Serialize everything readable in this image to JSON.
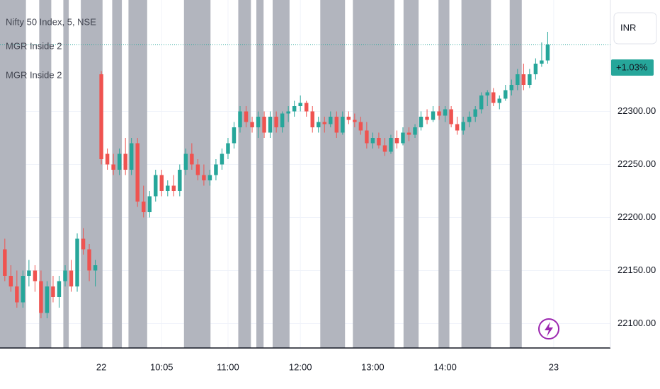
{
  "chart_data": {
    "type": "candlestick",
    "title": "Nifty 50 Index, 5, NSE",
    "indicators": [
      "MGR Inside 2",
      "MGR Inside 2"
    ],
    "currency": "INR",
    "change_label": "+1.03%",
    "last_price": 22363,
    "up_color": "#26a69a",
    "down_color": "#ef5350",
    "band_color": "#b2b5be",
    "grid": true,
    "xlim": [
      -16.8,
      84.4
    ],
    "ylim": [
      22077,
      22405
    ],
    "yticks": [
      {
        "value": 22100,
        "label": "22100.00"
      },
      {
        "value": 22150,
        "label": "22150.00"
      },
      {
        "value": 22200,
        "label": "22200.00"
      },
      {
        "value": 22250,
        "label": "22250.00"
      },
      {
        "value": 22300,
        "label": "22300.00"
      }
    ],
    "xticks": [
      {
        "value": 0,
        "label": "22"
      },
      {
        "value": 10,
        "label": "10:05"
      },
      {
        "value": 21,
        "label": "11:00"
      },
      {
        "value": 33,
        "label": "12:00"
      },
      {
        "value": 45,
        "label": "13:00"
      },
      {
        "value": 57,
        "label": "14:00"
      },
      {
        "value": 75,
        "label": "23"
      }
    ],
    "bands": [
      [
        -16.8,
        -12.5
      ],
      [
        -10.3,
        -8.3
      ],
      [
        -6.3,
        -5.4
      ],
      [
        -3.4,
        0.2
      ],
      [
        1.8,
        3.4
      ],
      [
        4.5,
        7.6
      ],
      [
        13.7,
        18.1
      ],
      [
        22.7,
        24.8
      ],
      [
        25.7,
        26.9
      ],
      [
        28.4,
        31.2
      ],
      [
        36.3,
        40.4
      ],
      [
        41.7,
        48.6
      ],
      [
        50.1,
        52.6
      ],
      [
        55.9,
        57.7
      ],
      [
        59.7,
        64.6
      ],
      [
        67.7,
        69.7
      ]
    ],
    "x": [
      -16,
      -15,
      -14,
      -13,
      -12,
      -11,
      -10,
      -9,
      -8,
      -7,
      -6,
      -5,
      -4,
      -3,
      -2,
      -1,
      0,
      1,
      2,
      3,
      4,
      5,
      6,
      7,
      8,
      9,
      10,
      11,
      12,
      13,
      14,
      15,
      16,
      17,
      18,
      19,
      20,
      21,
      22,
      23,
      24,
      25,
      26,
      27,
      28,
      29,
      30,
      31,
      32,
      33,
      34,
      35,
      36,
      37,
      38,
      39,
      40,
      41,
      42,
      43,
      44,
      45,
      46,
      47,
      48,
      49,
      50,
      51,
      52,
      53,
      54,
      55,
      56,
      57,
      58,
      59,
      60,
      61,
      62,
      63,
      64,
      65,
      66,
      67,
      68,
      69,
      70,
      71,
      72,
      73,
      74
    ],
    "open": [
      22170,
      22145,
      22135,
      22120,
      22145,
      22150,
      22140,
      22110,
      22135,
      22125,
      22140,
      22150,
      22135,
      22180,
      22170,
      22150,
      22335,
      22260,
      22250,
      22245,
      22260,
      22245,
      22270,
      22215,
      22205,
      22220,
      22240,
      22225,
      22230,
      22225,
      22245,
      22260,
      22250,
      22240,
      22235,
      22240,
      22250,
      22260,
      22270,
      22285,
      22300,
      22290,
      22285,
      22295,
      22280,
      22295,
      22285,
      22298,
      22300,
      22305,
      22308,
      22300,
      22285,
      22290,
      22288,
      22295,
      22280,
      22295,
      22292,
      22290,
      22282,
      22270,
      22275,
      22268,
      22262,
      22275,
      22270,
      22280,
      22278,
      22285,
      22295,
      22292,
      22300,
      22296,
      22302,
      22288,
      22282,
      22290,
      22295,
      22302,
      22315,
      22318,
      22308,
      22312,
      22320,
      22325,
      22335,
      22325,
      22335,
      22345,
      22348
    ],
    "high": [
      22180,
      22155,
      22150,
      22150,
      22160,
      22155,
      22150,
      22140,
      22145,
      22145,
      22155,
      22160,
      22185,
      22190,
      22175,
      22160,
      22338,
      22265,
      22260,
      22265,
      22275,
      22275,
      22275,
      22230,
      22225,
      22245,
      22245,
      22235,
      22240,
      22250,
      22265,
      22270,
      22255,
      22250,
      22245,
      22255,
      22265,
      22275,
      22290,
      22305,
      22305,
      22295,
      22300,
      22300,
      22300,
      22300,
      22300,
      22305,
      22310,
      22315,
      22310,
      22305,
      22295,
      22295,
      22300,
      22300,
      22300,
      22300,
      22298,
      22295,
      22290,
      22280,
      22280,
      22275,
      22278,
      22282,
      22285,
      22285,
      22288,
      22300,
      22302,
      22305,
      22305,
      22305,
      22305,
      22295,
      22295,
      22300,
      22305,
      22318,
      22320,
      22322,
      22315,
      22325,
      22330,
      22340,
      22345,
      22340,
      22350,
      22365,
      22375
    ],
    "low": [
      22140,
      22130,
      22115,
      22115,
      22135,
      22130,
      22105,
      22105,
      22120,
      22115,
      22135,
      22130,
      22130,
      22165,
      22140,
      22135,
      22250,
      22245,
      22240,
      22240,
      22240,
      22240,
      22210,
      22200,
      22200,
      22215,
      22220,
      22220,
      22220,
      22220,
      22240,
      22245,
      22235,
      22230,
      22230,
      22235,
      22245,
      22255,
      22265,
      22280,
      22285,
      22280,
      22275,
      22275,
      22275,
      22280,
      22280,
      22290,
      22295,
      22300,
      22295,
      22280,
      22280,
      22280,
      22285,
      22275,
      22278,
      22288,
      22285,
      22278,
      22265,
      22265,
      22265,
      22258,
      22260,
      22265,
      22268,
      22272,
      22275,
      22282,
      22288,
      22290,
      22292,
      22290,
      22285,
      22278,
      22278,
      22285,
      22290,
      22298,
      22305,
      22305,
      22302,
      22310,
      22315,
      22320,
      22320,
      22322,
      22330,
      22342,
      22345
    ],
    "close": [
      22145,
      22135,
      22120,
      22145,
      22150,
      22140,
      22110,
      22135,
      22125,
      22140,
      22150,
      22135,
      22180,
      22170,
      22150,
      22155,
      22255,
      22250,
      22245,
      22260,
      22245,
      22270,
      22215,
      22205,
      22220,
      22240,
      22225,
      22230,
      22225,
      22245,
      22260,
      22250,
      22240,
      22235,
      22240,
      22250,
      22260,
      22270,
      22285,
      22300,
      22290,
      22285,
      22295,
      22280,
      22295,
      22285,
      22298,
      22300,
      22305,
      22308,
      22300,
      22285,
      22290,
      22288,
      22295,
      22280,
      22295,
      22292,
      22290,
      22282,
      22270,
      22275,
      22268,
      22262,
      22275,
      22270,
      22280,
      22278,
      22285,
      22295,
      22292,
      22300,
      22296,
      22302,
      22288,
      22282,
      22290,
      22295,
      22302,
      22315,
      22318,
      22308,
      22312,
      22320,
      22325,
      22335,
      22325,
      22335,
      22345,
      22348,
      22363
    ]
  }
}
